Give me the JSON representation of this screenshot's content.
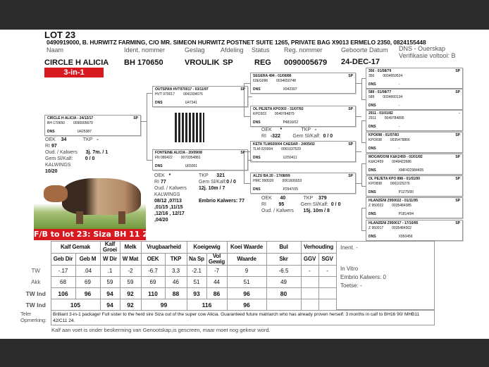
{
  "lot": "LOT 23",
  "seller": "0490919000, B. HURWITZ FARMING, C/O MR. SIMEON HURWITZ POSTNET SUITE 1265, PRIVATE BAG X9013 ERMELO 2350, 0824155448",
  "labels": {
    "naam": "Naam",
    "ident": "Ident. nommer",
    "geslag": "Geslag",
    "afdeling": "Afdeling",
    "status": "Status",
    "reg": "Reg. nommer",
    "geboorte": "Geboorte Datum",
    "dns": "DNS - Ouerskap",
    "verifikasie": "Verifikasie voltooi: B"
  },
  "animal": {
    "naam": "CIRCLE H ALICIA",
    "ident": "BH  170650",
    "geslag": "VROULIK",
    "afdeling": "SP",
    "status": "REG",
    "reg": "0090005679",
    "geboorte": "24-DEC-17",
    "badge": "3-in-1"
  },
  "pedigree": [
    {
      "t": "CIRCLE H ALICIA - 24/12/17",
      "c": "SP",
      "id": "BH  170650",
      "reg": "0090005679",
      "dns": "U425387"
    },
    {
      "t": "OUTSPAN HVT970017 - 03/11/97",
      "c": "SP",
      "id": "HVT 970017",
      "reg": "0041934076",
      "dns": "U47341"
    },
    {
      "t": "FONTEINE ALICIA - 20/09/08",
      "c": "SP",
      "id": "FN  080422",
      "reg": "0070354881",
      "dns": "U65001"
    },
    {
      "t": "SEGERA 494 - 01/08/86",
      "c": "SP",
      "id": "63EG096",
      "reg": "0034650748",
      "dns": "X942397"
    },
    {
      "t": "OL PEJETA KPO303 - 31/07/92",
      "c": "SP",
      "id": "KPO303",
      "reg": "0049784879",
      "dns": "P4816/02"
    },
    {
      "t": "KETA TLM020004 CAESAR - 24/05/02",
      "c": "SP",
      "id": "TLM 020004",
      "reg": "0061037529",
      "dns": "U250411"
    },
    {
      "t": "ALZU BA 20 - 17/08/99",
      "c": "SP",
      "id": "HMC 990020",
      "reg": "0061606653",
      "dns": "P2947/05"
    },
    {
      "t": "356 - 01/08/79",
      "c": "SP",
      "id": "356",
      "reg": "0034659524",
      "dns": "-"
    },
    {
      "t": "589 - 01/08/77",
      "c": "SP",
      "id": "589",
      "reg": "0034660134",
      "dns": "-"
    },
    {
      "t": "2911 - 01/01/82",
      "c": "-",
      "id": "2911",
      "reg": "0049784895",
      "dns": "-"
    },
    {
      "t": "KPO698 - 01/07/83",
      "c": "SP",
      "id": "KPO698",
      "reg": "0035478866",
      "dns": "-"
    },
    {
      "t": "MOGWOONI K&K2459 - 01/01/92",
      "c": "SP",
      "id": "K&K2459",
      "reg": "0049422686",
      "dns": "XMF422984405"
    },
    {
      "t": "OL PEJETA KPO 898 - 01/01/90",
      "c": "SP",
      "id": "KPO898",
      "reg": "0061025276",
      "dns": "P1275/90"
    },
    {
      "t": "HLANZENI Z950022 - 01/11/95",
      "c": "SP",
      "id": "Z  950022",
      "reg": "0035484385",
      "dns": "P1814/94"
    },
    {
      "t": "HLANZENI Z950017 - 17/10/95",
      "c": "SP",
      "id": "Z  950017",
      "reg": "0035484302",
      "dns": "X950456"
    }
  ],
  "dns_label": "DNS",
  "animal_stats": {
    "oek_l": "OEK",
    "oek": "34",
    "tkp_l": "TKP",
    "tkp": "-",
    "ri_l": "RI",
    "ri": "97",
    "oud_l": "Oud. / Kalwers",
    "oud": "3j. 7m.  / 1",
    "gem_l": "Gem Sl/Kalf:",
    "gem": "0 / 0",
    "kalwings_l": "KALWINGS",
    "kalwings": "10/20"
  },
  "dam_stats": {
    "oek_l": "OEK",
    "oek": "*",
    "tkp_l": "TKP",
    "tkp": "321",
    "ri_l": "RI",
    "ri": "77",
    "gem_l": "Gem Sl/Kalf:",
    "gem": "0 / 0",
    "oud_l": "Oud. / Kalwers",
    "oud": "12j. 10m  / 7",
    "kalwings_l": "KALWINGS",
    "kalwings": "08/12 ,07/13 ,01/15 ,11/15 ,12/16 , 12/17 ,04/20",
    "embrio": "Embrio Kalwers: 77"
  },
  "kpo303_stats": {
    "oek_l": "OEK",
    "oek": "*",
    "tkp_l": "TKP",
    "tkp": "-",
    "ri_l": "RI",
    "ri": "-322",
    "gem_l": "Gem Sl/Kalf:",
    "gem": "0 / 0"
  },
  "alzu_stats": {
    "oek_l": "OEK",
    "oek": "40",
    "tkp_l": "TKP",
    "tkp": "379",
    "ri_l": "RI",
    "ri": "95",
    "gem_l": "Gem Sl/Kalf:",
    "gem": "0 / 0",
    "oud_l": "Oud. / Kalwers",
    "oud": "15j. 10m  / 8"
  },
  "banner": "F/B to lot 23:  Siza BH 11 24",
  "table": {
    "groups": [
      "Kalf Gemak",
      "Kalf Groei",
      "Melk",
      "Vrugbaarheid",
      "Koeigewig",
      "Koei Waarde",
      "Bul",
      "Verhouding"
    ],
    "cols": [
      "Geb Dir",
      "Geb M",
      "W Dir",
      "W Mat",
      "OEK",
      "TKP",
      "Na Sp",
      "Vol Gewig",
      "Waarde",
      "Skr",
      "GGV",
      "SGV"
    ],
    "rows": [
      {
        "label": "TW",
        "values": [
          "-.17",
          ".04",
          ".1",
          "-2",
          "-6.7",
          "3.3",
          "-2.1",
          "-7",
          "9",
          "-6.5",
          "-",
          "-"
        ]
      },
      {
        "label": "Akk",
        "values": [
          "68",
          "69",
          "59",
          "59",
          "69",
          "46",
          "51",
          "44",
          "51",
          "49",
          "",
          ""
        ]
      },
      {
        "label": "TW Ind",
        "values": [
          "106",
          "96",
          "94",
          "92",
          "110",
          "88",
          "93",
          "86",
          "96",
          "80",
          "",
          ""
        ]
      }
    ],
    "summary": {
      "label": "TW Ind",
      "values": [
        "105",
        "94",
        "92",
        "99",
        "116",
        "96"
      ]
    }
  },
  "info": {
    "inent": "Inent. -",
    "in_vitro": "In Vitro",
    "embrio": "Embrio Kalwers:   0",
    "toetse": "Toetse: -"
  },
  "remark_label": [
    "Teler",
    "Opmerking:"
  ],
  "remark": "Brilliant 3-in-1 package! Full sister to the herd sire Siza out of the super cow Alicia. Guaranteed future matriarch who has already proven herself.  3 months in calf to BH16 90/ MHB11 42/C11 24.",
  "footer": "Kalf aan voet  is onder beskerming van Genootskap,is gescreen, maar moet nog gekeur word."
}
